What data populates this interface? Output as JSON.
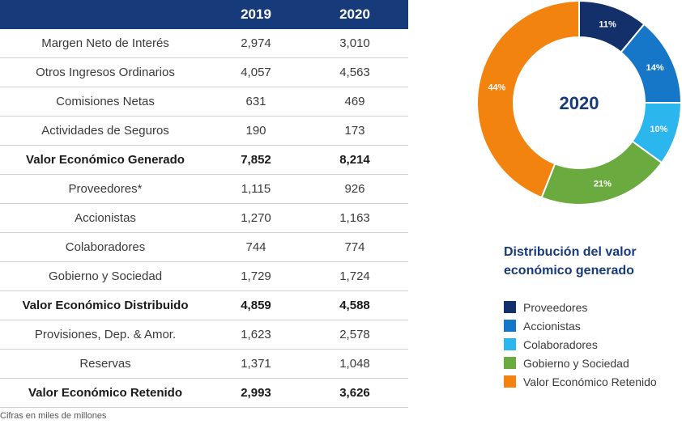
{
  "chart_data": [
    {
      "type": "table",
      "columns": [
        "",
        "2019",
        "2020"
      ],
      "rows": [
        {
          "label": "Margen Neto de Interés",
          "v2019": "2,974",
          "v2020": "3,010",
          "bold": false
        },
        {
          "label": "Otros Ingresos Ordinarios",
          "v2019": "4,057",
          "v2020": "4,563",
          "bold": false
        },
        {
          "label": "Comisiones Netas",
          "v2019": "631",
          "v2020": "469",
          "bold": false
        },
        {
          "label": "Actividades de Seguros",
          "v2019": "190",
          "v2020": "173",
          "bold": false
        },
        {
          "label": "Valor Económico Generado",
          "v2019": "7,852",
          "v2020": "8,214",
          "bold": true
        },
        {
          "label": "Proveedores*",
          "v2019": "1,115",
          "v2020": "926",
          "bold": false
        },
        {
          "label": "Accionistas",
          "v2019": "1,270",
          "v2020": "1,163",
          "bold": false
        },
        {
          "label": "Colaboradores",
          "v2019": "744",
          "v2020": "774",
          "bold": false
        },
        {
          "label": "Gobierno y Sociedad",
          "v2019": "1,729",
          "v2020": "1,724",
          "bold": false
        },
        {
          "label": "Valor Económico Distribuido",
          "v2019": "4,859",
          "v2020": "4,588",
          "bold": true
        },
        {
          "label": "Provisiones, Dep. & Amor.",
          "v2019": "1,623",
          "v2020": "2,578",
          "bold": false
        },
        {
          "label": "Reservas",
          "v2019": "1,371",
          "v2020": "1,048",
          "bold": false
        },
        {
          "label": "Valor Económico Retenido",
          "v2019": "2,993",
          "v2020": "3,626",
          "bold": true
        }
      ],
      "footnote": "Cifras en miles de millones"
    },
    {
      "type": "pie",
      "center_label": "2020",
      "title": "Distribución del valor económico generado",
      "slices": [
        {
          "name": "Proveedores",
          "value": 11,
          "label": "11%",
          "color": "#13306b"
        },
        {
          "name": "Accionistas",
          "value": 14,
          "label": "14%",
          "color": "#1677c8"
        },
        {
          "name": "Colaboradores",
          "value": 10,
          "label": "10%",
          "color": "#2bb6ee"
        },
        {
          "name": "Gobierno y Sociedad",
          "value": 21,
          "label": "21%",
          "color": "#6aaa3e"
        },
        {
          "name": "Valor Económico Retenido",
          "value": 44,
          "label": "44%",
          "color": "#f3830f"
        }
      ]
    }
  ]
}
